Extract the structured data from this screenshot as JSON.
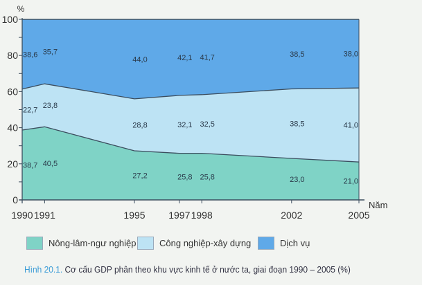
{
  "chart_data": {
    "type": "area",
    "stacked": true,
    "title": "Hình 20.1. Cơ cấu GDP phân theo khu vực kinh tế ở nước ta, giai đoạn 1990 – 2005 (%)",
    "caption_prefix": "Hình 20.1.",
    "caption_text": "Cơ cấu GDP phân theo khu vực kinh tế ở nước ta, giai đoạn 1990 –  2005 (%)",
    "ylabel": "%",
    "xlabel": "Năm",
    "ylim": [
      0,
      100
    ],
    "yticks": [
      "0",
      "20",
      "40",
      "60",
      "80",
      "100"
    ],
    "x": [
      1990,
      1991,
      1995,
      1997,
      1998,
      2002,
      2005
    ],
    "xtick_labels": [
      "1990",
      "1991",
      "1995",
      "1997",
      "1998",
      "2002",
      "2005"
    ],
    "series": [
      {
        "name": "Nông-lâm-ngư nghiệp",
        "color": "#7fd3c6",
        "values": [
          38.7,
          40.5,
          27.2,
          25.8,
          25.8,
          23.0,
          21.0
        ],
        "labels": [
          "38,7",
          "40,5",
          "27,2",
          "25,8",
          "25,8",
          "23,0",
          "21,0"
        ]
      },
      {
        "name": "Công nghiệp-xây dựng",
        "color": "#bde3f4",
        "values": [
          22.7,
          23.8,
          28.8,
          32.1,
          32.5,
          38.5,
          41.0
        ],
        "labels": [
          "22,7",
          "23,8",
          "28,8",
          "32,1",
          "32,5",
          "38,5",
          "41,0"
        ]
      },
      {
        "name": "Dịch vụ",
        "color": "#5fa9e8",
        "values": [
          38.6,
          35.7,
          44.0,
          42.1,
          41.7,
          38.5,
          38.0
        ],
        "labels": [
          "38,6",
          "35,7",
          "44,0",
          "42,1",
          "41,7",
          "38,5",
          "38,0"
        ]
      }
    ],
    "legend_position": "bottom"
  }
}
